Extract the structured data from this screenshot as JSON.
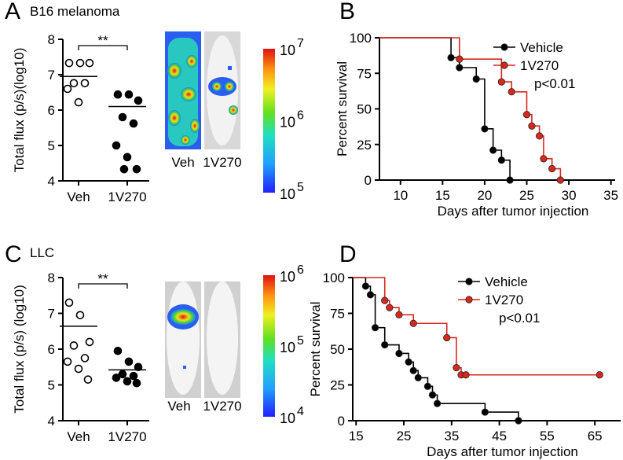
{
  "chart_data": [
    {
      "type": "strip",
      "panel": "A",
      "title": "B16 melanoma",
      "ylabel": "Total flux (p/s)(log10)",
      "categories": [
        "Veh",
        "1V270"
      ],
      "series": [
        {
          "color": "#000000",
          "marker": "open",
          "values": [
            7.33,
            7.33,
            7.33,
            6.76,
            6.76,
            6.6,
            6.22
          ]
        },
        {
          "color": "#000000",
          "marker": "filled",
          "values": [
            6.44,
            6.44,
            6.27,
            5.8,
            5.62,
            5.0,
            4.67,
            4.33,
            4.33
          ]
        }
      ],
      "center_lines": [
        6.95,
        6.1
      ],
      "annotation": "**",
      "ylim": [
        4,
        8
      ],
      "yticks": [
        4,
        5,
        6,
        7,
        8
      ],
      "image_labels": [
        "Veh",
        "1V270"
      ],
      "colorbar_ticks": [
        {
          "value": 7,
          "label": "10"
        },
        {
          "value": 6,
          "label": "10"
        },
        {
          "value": 5,
          "label": "10"
        }
      ]
    },
    {
      "type": "survival",
      "panel": "B",
      "xlabel": "Days after tumor injection",
      "ylabel": "Percent survival",
      "series": [
        {
          "name": "Vehicle",
          "color": "#000000",
          "x": [
            16,
            17,
            19,
            20,
            21,
            22,
            23
          ],
          "values": [
            86,
            79,
            71,
            36,
            21,
            14,
            0
          ]
        },
        {
          "name": "1V270",
          "color": "#d7281e",
          "x": [
            17,
            22,
            23.2,
            25,
            25.6,
            26.5,
            27,
            28,
            29
          ],
          "values": [
            85,
            69,
            62,
            46,
            38,
            31,
            15,
            8,
            0
          ]
        }
      ],
      "annotation": "p<0.01",
      "xlim": [
        7.5,
        35.5
      ],
      "xticks": [
        10,
        15,
        20,
        25,
        30,
        35
      ],
      "ylim": [
        0,
        100
      ],
      "yticks": [
        0,
        25,
        50,
        75,
        100
      ]
    },
    {
      "type": "strip",
      "panel": "C",
      "title": "LLC",
      "ylabel": "Total flux (p/s) (log10)",
      "categories": [
        "Veh",
        "1V270"
      ],
      "series": [
        {
          "color": "#000000",
          "marker": "open",
          "values": [
            7.3,
            6.95,
            6.2,
            6.1,
            5.75,
            5.65,
            5.45,
            5.15
          ]
        },
        {
          "color": "#000000",
          "marker": "filled",
          "values": [
            5.95,
            5.65,
            5.5,
            5.3,
            5.25,
            5.2,
            5.1,
            5.05
          ]
        }
      ],
      "center_lines": [
        6.64,
        5.42
      ],
      "annotation": "**",
      "ylim": [
        4,
        8
      ],
      "yticks": [
        4,
        5,
        6,
        7,
        8
      ],
      "image_labels": [
        "Veh",
        "1V270"
      ],
      "colorbar_ticks": [
        {
          "value": 6,
          "label": "10"
        },
        {
          "value": 5,
          "label": "10"
        },
        {
          "value": 4,
          "label": "10"
        }
      ]
    },
    {
      "type": "survival",
      "panel": "D",
      "xlabel": "Days after tumor injection",
      "ylabel": "Percent survival",
      "series": [
        {
          "name": "Vehicle",
          "color": "#000000",
          "x": [
            17,
            18,
            19,
            21,
            24,
            26,
            27,
            28,
            30,
            31,
            32,
            42,
            49
          ],
          "values": [
            94,
            88,
            65,
            53,
            47,
            41,
            35,
            30,
            24,
            18,
            12,
            6,
            0
          ]
        },
        {
          "name": "1V270",
          "color": "#d7281e",
          "x": [
            21,
            22,
            24,
            27,
            34,
            36,
            37,
            38,
            66
          ],
          "values": [
            84,
            79,
            74,
            68,
            58,
            37,
            32,
            32,
            32
          ]
        }
      ],
      "annotation": "p<0.01",
      "xlim": [
        14.3,
        70.4
      ],
      "xticks": [
        15,
        25,
        35,
        45,
        55,
        65
      ],
      "ylim": [
        0,
        100
      ],
      "yticks": [
        0,
        25,
        50,
        75,
        100
      ]
    }
  ]
}
